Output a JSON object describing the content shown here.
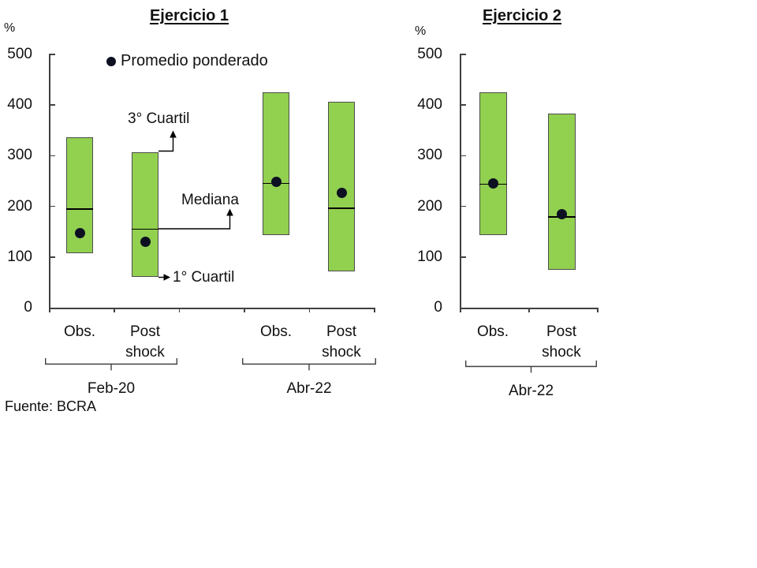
{
  "source_note": "Fuente: BCRA",
  "colors": {
    "box_fill": "#92d050",
    "box_border": "#4d4d4d",
    "median_line": "#000000",
    "dot": "#0d1021",
    "axis": "#404040",
    "text": "#111111"
  },
  "chart_data": [
    {
      "type": "box",
      "title": "Ejercicio 1",
      "ylabel": "%",
      "ylim": [
        0,
        500
      ],
      "yticks": [
        0,
        100,
        200,
        300,
        400,
        500
      ],
      "legend": "Promedio ponderado",
      "annotations": {
        "q3": "3° Cuartil",
        "median": "Mediana",
        "q1": "1° Cuartil"
      },
      "groups": [
        {
          "label": "Feb-20",
          "series": [
            {
              "category": "Obs.",
              "q1": 107,
              "median": 195,
              "q3": 337,
              "weighted_avg": 147
            },
            {
              "category": "Post shock",
              "q1": 60,
              "median": 155,
              "q3": 307,
              "weighted_avg": 130
            }
          ]
        },
        {
          "label": "Abr-22",
          "series": [
            {
              "category": "Obs.",
              "q1": 143,
              "median": 245,
              "q3": 426,
              "weighted_avg": 248
            },
            {
              "category": "Post shock",
              "q1": 71,
              "median": 196,
              "q3": 407,
              "weighted_avg": 226
            }
          ]
        }
      ]
    },
    {
      "type": "box",
      "title": "Ejercicio 2",
      "ylabel": "%",
      "ylim": [
        0,
        500
      ],
      "yticks": [
        0,
        100,
        200,
        300,
        400,
        500
      ],
      "groups": [
        {
          "label": "Abr-22",
          "series": [
            {
              "category": "Obs.",
              "q1": 143,
              "median": 244,
              "q3": 426,
              "weighted_avg": 246
            },
            {
              "category": "Post shock",
              "q1": 75,
              "median": 179,
              "q3": 383,
              "weighted_avg": 184
            }
          ]
        }
      ]
    }
  ]
}
